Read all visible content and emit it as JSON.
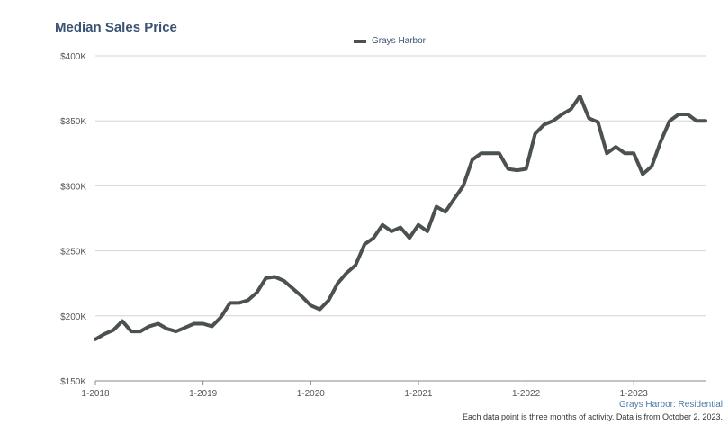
{
  "chart_data": {
    "type": "line",
    "title": "Median Sales Price",
    "legend": "top-center",
    "grid": true,
    "ylim": [
      150000,
      400000
    ],
    "y_ticks": [
      {
        "value": 400000,
        "label": "$400K"
      },
      {
        "value": 350000,
        "label": "$350K"
      },
      {
        "value": 300000,
        "label": "$300K"
      },
      {
        "value": 250000,
        "label": "$250K"
      },
      {
        "value": 200000,
        "label": "$200K"
      },
      {
        "value": 150000,
        "label": "$150K"
      }
    ],
    "x_ticks": [
      {
        "index": 0,
        "label": "1-2018"
      },
      {
        "index": 12,
        "label": "1-2019"
      },
      {
        "index": 24,
        "label": "1-2020"
      },
      {
        "index": 36,
        "label": "1-2021"
      },
      {
        "index": 48,
        "label": "1-2022"
      },
      {
        "index": 60,
        "label": "1-2023"
      }
    ],
    "series": [
      {
        "name": "Grays Harbor",
        "color": "#4a514f",
        "x": [
          "1-2018",
          "2-2018",
          "3-2018",
          "4-2018",
          "5-2018",
          "6-2018",
          "7-2018",
          "8-2018",
          "9-2018",
          "10-2018",
          "11-2018",
          "12-2018",
          "1-2019",
          "2-2019",
          "3-2019",
          "4-2019",
          "5-2019",
          "6-2019",
          "7-2019",
          "8-2019",
          "9-2019",
          "10-2019",
          "11-2019",
          "12-2019",
          "1-2020",
          "2-2020",
          "3-2020",
          "4-2020",
          "5-2020",
          "6-2020",
          "7-2020",
          "8-2020",
          "9-2020",
          "10-2020",
          "11-2020",
          "12-2020",
          "1-2021",
          "2-2021",
          "3-2021",
          "4-2021",
          "5-2021",
          "6-2021",
          "7-2021",
          "8-2021",
          "9-2021",
          "10-2021",
          "11-2021",
          "12-2021",
          "1-2022",
          "2-2022",
          "3-2022",
          "4-2022",
          "5-2022",
          "6-2022",
          "7-2022",
          "8-2022",
          "9-2022",
          "10-2022",
          "11-2022",
          "12-2022",
          "1-2023",
          "2-2023",
          "3-2023",
          "4-2023",
          "5-2023",
          "6-2023",
          "7-2023",
          "8-2023",
          "9-2023"
        ],
        "values": [
          182000,
          186000,
          189000,
          196000,
          188000,
          188000,
          192000,
          194000,
          190000,
          188000,
          191000,
          194000,
          194000,
          192000,
          199000,
          210000,
          210000,
          212000,
          218000,
          229000,
          230000,
          227000,
          221000,
          215000,
          208000,
          205000,
          212000,
          225000,
          233000,
          239000,
          255000,
          260000,
          270000,
          265000,
          268000,
          260000,
          270000,
          265000,
          284000,
          280000,
          290000,
          300000,
          320000,
          325000,
          325000,
          325000,
          313000,
          312000,
          313000,
          340000,
          347000,
          350000,
          355000,
          359000,
          369000,
          352000,
          349000,
          325000,
          330000,
          325000,
          325000,
          309000,
          315000,
          334000,
          350000,
          355000,
          355000,
          350000,
          350000
        ]
      }
    ],
    "source": "Grays Harbor: Residential",
    "footnote": "Each data point is three months of activity. Data is from October 2, 2023."
  }
}
